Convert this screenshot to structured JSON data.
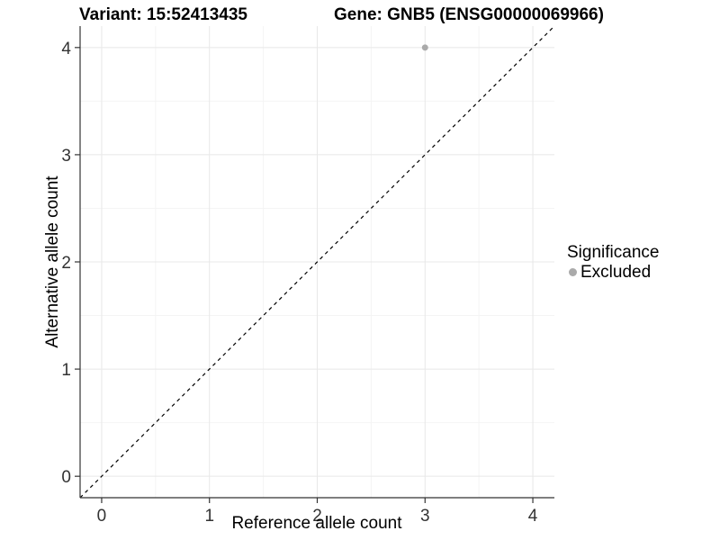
{
  "header": {
    "variant_title": "Variant: 15:52413435",
    "gene_title": "Gene: GNB5 (ENSG00000069966)"
  },
  "axes": {
    "x_label": "Reference allele count",
    "y_label": "Alternative allele count"
  },
  "legend": {
    "title": "Significance",
    "items": [
      {
        "label": "Excluded",
        "color": "#aaaaaa"
      }
    ]
  },
  "chart_data": {
    "type": "scatter",
    "title": "Variant: 15:52413435    Gene: GNB5 (ENSG00000069966)",
    "xlabel": "Reference allele count",
    "ylabel": "Alternative allele count",
    "xlim": [
      -0.2,
      4.2
    ],
    "ylim": [
      -0.2,
      4.2
    ],
    "x_ticks": [
      0,
      1,
      2,
      3,
      4
    ],
    "y_ticks": [
      0,
      1,
      2,
      3,
      4
    ],
    "x_minor_ticks": [
      0.5,
      1.5,
      2.5,
      3.5
    ],
    "y_minor_ticks": [
      0.5,
      1.5,
      2.5,
      3.5
    ],
    "grid": true,
    "legend_position": "right",
    "series": [
      {
        "name": "Excluded",
        "color": "#aaaaaa",
        "points": [
          {
            "x": 3,
            "y": 4
          }
        ]
      }
    ],
    "reference_line": {
      "slope": 1,
      "intercept": 0,
      "style": "dashed",
      "color": "#000000"
    },
    "colors": {
      "background": "#ffffff",
      "grid_major": "#e8e8e8",
      "grid_minor": "#f4f4f4",
      "axis_line": "#333333",
      "tick_mark": "#333333",
      "tick_text": "#333333"
    }
  }
}
